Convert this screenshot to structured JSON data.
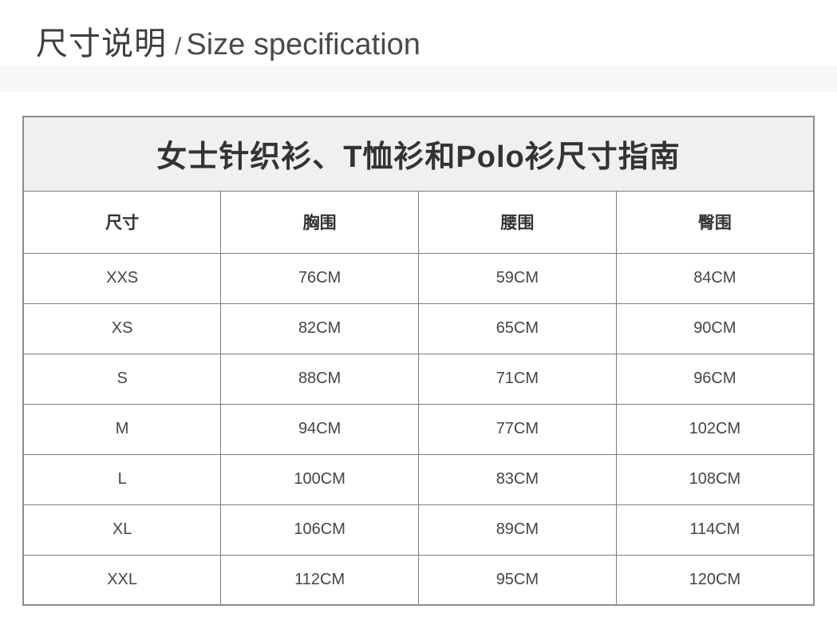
{
  "heading": {
    "zh": "尺寸说明",
    "divider": "/",
    "en": "Size specification"
  },
  "size_table": {
    "title": "女士针织衫、T恤衫和Polo衫尺寸指南",
    "columns": [
      "尺寸",
      "胸围",
      "腰围",
      "臀围"
    ],
    "rows": [
      [
        "XXS",
        "76CM",
        "59CM",
        "84CM"
      ],
      [
        "XS",
        "82CM",
        "65CM",
        "90CM"
      ],
      [
        "S",
        "88CM",
        "71CM",
        "96CM"
      ],
      [
        "M",
        "94CM",
        "77CM",
        "102CM"
      ],
      [
        "L",
        "100CM",
        "83CM",
        "108CM"
      ],
      [
        "XL",
        "106CM",
        "89CM",
        "114CM"
      ],
      [
        "XXL",
        "112CM",
        "95CM",
        "120CM"
      ]
    ]
  },
  "colors": {
    "page_background": "#ffffff",
    "divider_band": "#f7f7f7",
    "table_title_background": "#f0f0f0",
    "table_border": "#7d7d7d",
    "table_outer_border": "#8c8c8c",
    "heading_text": "#3d3d3d",
    "cell_text": "#454545"
  }
}
